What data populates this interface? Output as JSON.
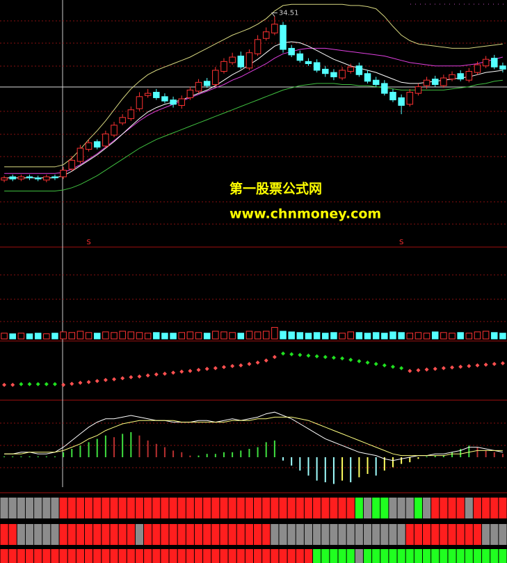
{
  "chart_data": [
    {
      "type": "candlestick",
      "open": [
        19.6,
        19.9,
        19.7,
        19.9,
        19.8,
        19.6,
        19.9,
        19.9,
        20.6,
        21.3,
        22.4,
        23.1,
        22.7,
        23.7,
        24.8,
        25.2,
        26.1,
        27.3,
        27.6,
        27.2,
        26.9,
        26.4,
        27.1,
        27.7,
        28.6,
        28.3,
        29.5,
        30.3,
        30.9,
        29.8,
        31.1,
        32.5,
        33.0,
        33.7,
        31.6,
        31.1,
        30.4,
        30.3,
        29.7,
        29.4,
        28.9,
        29.5,
        30.0,
        29.3,
        28.7,
        28.4,
        27.6,
        27.1,
        26.5,
        27.5,
        28.2,
        28.8,
        28.2,
        28.8,
        29.3,
        28.7,
        29.4,
        30.0,
        30.7,
        30.0
      ],
      "high": [
        20.0,
        20.1,
        20.1,
        20.1,
        20.0,
        20.1,
        20.1,
        20.8,
        21.8,
        22.8,
        23.3,
        23.3,
        24.1,
        24.9,
        25.6,
        26.3,
        27.6,
        27.9,
        27.9,
        27.5,
        27.2,
        27.3,
        28.1,
        28.8,
        28.9,
        29.9,
        30.7,
        31.2,
        31.3,
        31.5,
        32.8,
        33.5,
        34.51,
        34.0,
        31.9,
        31.4,
        30.7,
        30.6,
        30.0,
        29.7,
        29.9,
        30.2,
        30.3,
        29.6,
        29.0,
        28.7,
        27.9,
        27.4,
        27.9,
        28.4,
        29.0,
        29.1,
        29.2,
        29.5,
        29.6,
        29.8,
        30.4,
        30.9,
        31.0,
        30.3
      ],
      "low": [
        19.4,
        19.5,
        19.5,
        19.6,
        19.5,
        19.4,
        19.6,
        19.7,
        20.4,
        21.1,
        22.2,
        22.4,
        22.5,
        23.5,
        24.6,
        25.0,
        25.9,
        27.1,
        26.9,
        26.6,
        26.2,
        26.1,
        26.9,
        27.5,
        28.0,
        28.1,
        29.3,
        30.1,
        29.7,
        29.6,
        30.9,
        32.3,
        32.8,
        31.2,
        30.8,
        30.3,
        30.0,
        29.4,
        29.0,
        28.7,
        28.7,
        29.3,
        29.0,
        28.4,
        28.1,
        27.3,
        26.7,
        25.6,
        26.3,
        27.3,
        27.9,
        28.1,
        28.0,
        28.6,
        28.6,
        28.5,
        29.2,
        29.8,
        29.7,
        29.4
      ],
      "close": [
        19.8,
        19.7,
        19.9,
        19.8,
        19.7,
        19.9,
        19.8,
        20.5,
        21.4,
        22.5,
        23.0,
        22.6,
        23.8,
        24.6,
        25.3,
        26.0,
        27.2,
        27.5,
        27.1,
        26.8,
        26.5,
        27.0,
        27.8,
        28.5,
        28.2,
        29.6,
        30.4,
        30.8,
        29.9,
        31.2,
        32.4,
        33.1,
        33.8,
        31.5,
        31.0,
        30.5,
        30.2,
        29.6,
        29.3,
        29.0,
        29.6,
        29.9,
        29.2,
        28.6,
        28.3,
        27.5,
        26.9,
        26.4,
        27.6,
        28.1,
        28.7,
        28.3,
        28.9,
        29.2,
        28.8,
        29.5,
        30.1,
        30.6,
        29.9,
        29.7
      ],
      "up_color": "#ff3232",
      "down_color": "#54ffff",
      "ylim": [
        13.5,
        36
      ],
      "lines": [
        {
          "color": "#d8d880",
          "values": [
            20.8,
            20.8,
            20.8,
            20.8,
            20.8,
            20.8,
            20.8,
            21.0,
            21.6,
            22.4,
            23.3,
            24.1,
            25.0,
            26.0,
            27.0,
            27.9,
            28.6,
            29.2,
            29.6,
            29.9,
            30.2,
            30.5,
            30.8,
            31.2,
            31.6,
            32.0,
            32.4,
            32.8,
            33.1,
            33.4,
            33.8,
            34.3,
            35.0,
            35.5,
            35.6,
            35.6,
            35.6,
            35.6,
            35.6,
            35.6,
            35.6,
            35.5,
            35.5,
            35.4,
            35.2,
            34.5,
            33.6,
            32.8,
            32.3,
            32.0,
            31.9,
            31.8,
            31.7,
            31.6,
            31.6,
            31.6,
            31.7,
            31.8,
            31.9,
            32.0
          ]
        },
        {
          "color": "#e040e0",
          "values": [
            20.2,
            20.2,
            20.2,
            20.2,
            20.2,
            20.2,
            20.2,
            20.3,
            20.6,
            21.0,
            21.5,
            22.0,
            22.6,
            23.2,
            23.8,
            24.4,
            25.0,
            25.5,
            25.9,
            26.2,
            26.5,
            26.8,
            27.1,
            27.4,
            27.7,
            28.0,
            28.3,
            28.7,
            29.0,
            29.4,
            29.8,
            30.2,
            30.7,
            31.1,
            31.3,
            31.5,
            31.6,
            31.6,
            31.6,
            31.5,
            31.4,
            31.3,
            31.2,
            31.1,
            31.0,
            30.9,
            30.7,
            30.5,
            30.3,
            30.2,
            30.1,
            30.0,
            30.0,
            30.0,
            30.0,
            30.1,
            30.2,
            30.4,
            30.6,
            30.8
          ]
        },
        {
          "color": "#40c040",
          "values": [
            18.6,
            18.6,
            18.6,
            18.6,
            18.6,
            18.6,
            18.6,
            18.7,
            18.9,
            19.2,
            19.6,
            20.0,
            20.5,
            21.0,
            21.5,
            22.0,
            22.5,
            22.9,
            23.3,
            23.6,
            23.9,
            24.2,
            24.5,
            24.8,
            25.1,
            25.4,
            25.7,
            26.0,
            26.3,
            26.6,
            26.9,
            27.2,
            27.5,
            27.8,
            28.0,
            28.2,
            28.3,
            28.4,
            28.4,
            28.4,
            28.3,
            28.3,
            28.2,
            28.2,
            28.1,
            28.0,
            27.9,
            27.8,
            27.8,
            27.8,
            27.8,
            27.8,
            27.8,
            27.9,
            28.0,
            28.1,
            28.3,
            28.4,
            28.6,
            28.7
          ]
        },
        {
          "color": "#ffffff",
          "values": [
            19.8,
            19.8,
            19.8,
            19.8,
            19.8,
            19.8,
            19.8,
            20.0,
            20.4,
            20.9,
            21.4,
            21.9,
            22.5,
            23.1,
            23.8,
            24.5,
            25.2,
            25.8,
            26.2,
            26.5,
            26.7,
            26.9,
            27.2,
            27.5,
            27.8,
            28.2,
            28.7,
            29.2,
            29.6,
            30.1,
            30.6,
            31.2,
            31.8,
            32.1,
            32.2,
            32.1,
            31.8,
            31.4,
            31.0,
            30.6,
            30.3,
            30.0,
            29.8,
            29.6,
            29.4,
            29.1,
            28.8,
            28.5,
            28.4,
            28.4,
            28.5,
            28.6,
            28.7,
            28.8,
            28.9,
            29.0,
            29.2,
            29.4,
            29.5,
            29.6
          ]
        }
      ],
      "signals": {
        "label": "S",
        "color": "#ff3030",
        "at": [
          10,
          47
        ]
      },
      "watermark": [
        "第一股票公式网",
        "www.chnmoney.com"
      ]
    },
    {
      "type": "volume",
      "values": [
        9,
        8,
        9,
        8,
        9,
        8,
        9,
        11,
        10,
        12,
        10,
        9,
        11,
        10,
        12,
        11,
        10,
        9,
        10,
        9,
        9,
        10,
        11,
        10,
        9,
        12,
        11,
        10,
        9,
        12,
        11,
        12,
        18,
        12,
        11,
        10,
        9,
        10,
        9,
        10,
        9,
        11,
        10,
        9,
        10,
        9,
        11,
        10,
        9,
        10,
        9,
        11,
        10,
        9,
        10,
        9,
        11,
        12,
        10,
        9
      ],
      "ylim": [
        0,
        100
      ]
    },
    {
      "type": "dots",
      "series": [
        {
          "color": "#ff5050",
          "values": [
            22,
            22,
            null,
            null,
            null,
            null,
            null,
            22,
            23.5,
            25,
            26,
            27.5,
            29,
            30,
            31.5,
            33,
            34,
            35.5,
            37,
            38,
            39.5,
            41,
            42,
            43.5,
            45,
            46,
            47.5,
            49,
            50,
            52,
            54,
            57,
            62,
            null,
            null,
            null,
            null,
            null,
            null,
            null,
            null,
            null,
            null,
            null,
            null,
            null,
            null,
            null,
            42,
            43,
            44,
            45,
            46,
            47,
            48,
            49,
            50,
            51,
            52,
            53
          ]
        },
        {
          "color": "#20e020",
          "values": [
            null,
            null,
            23,
            23,
            23,
            23,
            23,
            null,
            null,
            null,
            null,
            null,
            null,
            null,
            null,
            null,
            null,
            null,
            null,
            null,
            null,
            null,
            null,
            null,
            null,
            null,
            null,
            null,
            null,
            null,
            null,
            null,
            null,
            67,
            66,
            65,
            64,
            63,
            62,
            61,
            60,
            58,
            56,
            54,
            52,
            50,
            48,
            46,
            null,
            null,
            null,
            null,
            null,
            null,
            null,
            null,
            null,
            null,
            null,
            null
          ]
        }
      ],
      "ylim": [
        0,
        80
      ]
    },
    {
      "type": "macd",
      "histogram": [
        0.05,
        0.05,
        0.05,
        0.05,
        0.05,
        0.05,
        0.05,
        0.3,
        0.5,
        0.7,
        0.9,
        1.1,
        1.3,
        1.2,
        1.4,
        1.5,
        1.3,
        1.0,
        0.8,
        0.6,
        0.4,
        0.3,
        0.1,
        0.1,
        0.2,
        0.2,
        0.3,
        0.3,
        0.4,
        0.5,
        0.6,
        0.9,
        1.0,
        -0.2,
        -0.5,
        -0.8,
        -1.1,
        -1.4,
        -1.5,
        -1.6,
        -1.4,
        -1.5,
        -1.2,
        -1.0,
        -1.1,
        -0.8,
        -0.6,
        -0.4,
        -0.3,
        -0.1,
        0.05,
        0.1,
        0.1,
        0.3,
        0.5,
        0.7,
        0.6,
        0.4,
        0.3,
        0.2
      ],
      "hist_colors": {
        "pos_rise": "#40e040",
        "pos_fall": "#b83030",
        "neg_fall": "#a0ffff",
        "neg_rise": "#ffff60"
      },
      "series": [
        {
          "color": "#ffffff",
          "values": [
            0.2,
            0.2,
            0.3,
            0.3,
            0.2,
            0.2,
            0.3,
            0.6,
            1.0,
            1.4,
            1.8,
            2.1,
            2.3,
            2.3,
            2.4,
            2.5,
            2.4,
            2.3,
            2.2,
            2.2,
            2.1,
            2.1,
            2.1,
            2.2,
            2.2,
            2.1,
            2.2,
            2.3,
            2.2,
            2.3,
            2.4,
            2.6,
            2.7,
            2.5,
            2.3,
            2.0,
            1.7,
            1.4,
            1.1,
            0.9,
            0.7,
            0.5,
            0.3,
            0.2,
            0.1,
            -0.1,
            -0.2,
            -0.1,
            0.0,
            0.1,
            0.1,
            0.2,
            0.2,
            0.3,
            0.4,
            0.6,
            0.6,
            0.5,
            0.4,
            0.3
          ]
        },
        {
          "color": "#ffff80",
          "values": [
            0.2,
            0.2,
            0.2,
            0.3,
            0.3,
            0.3,
            0.3,
            0.4,
            0.6,
            0.8,
            1.1,
            1.3,
            1.6,
            1.8,
            2.0,
            2.1,
            2.2,
            2.2,
            2.2,
            2.2,
            2.2,
            2.1,
            2.1,
            2.1,
            2.1,
            2.1,
            2.1,
            2.2,
            2.2,
            2.2,
            2.3,
            2.3,
            2.4,
            2.4,
            2.4,
            2.3,
            2.2,
            2.0,
            1.8,
            1.6,
            1.4,
            1.2,
            1.0,
            0.8,
            0.6,
            0.4,
            0.2,
            0.1,
            0.1,
            0.1,
            0.1,
            0.1,
            0.1,
            0.2,
            0.2,
            0.3,
            0.4,
            0.4,
            0.4,
            0.4
          ]
        }
      ],
      "ylim": [
        -2,
        3
      ]
    },
    {
      "type": "state_rows",
      "palette": [
        "#ff1e1e",
        "#8c8c8c",
        "#20ff20"
      ],
      "rows": [
        [
          1,
          1,
          1,
          1,
          1,
          1,
          1,
          0,
          0,
          0,
          0,
          0,
          0,
          0,
          0,
          0,
          0,
          0,
          0,
          0,
          0,
          0,
          0,
          0,
          0,
          0,
          0,
          0,
          0,
          0,
          0,
          0,
          0,
          0,
          0,
          0,
          0,
          0,
          0,
          0,
          0,
          0,
          2,
          1,
          2,
          2,
          1,
          1,
          1,
          2,
          1,
          0,
          0,
          0,
          0,
          1,
          0,
          0,
          0,
          0
        ],
        [
          0,
          0,
          1,
          1,
          1,
          1,
          1,
          0,
          0,
          0,
          0,
          0,
          0,
          0,
          0,
          0,
          1,
          0,
          0,
          0,
          0,
          0,
          0,
          0,
          0,
          0,
          0,
          0,
          0,
          0,
          0,
          0,
          1,
          1,
          1,
          1,
          1,
          1,
          1,
          1,
          1,
          1,
          1,
          1,
          1,
          1,
          1,
          1,
          0,
          0,
          0,
          0,
          0,
          0,
          0,
          0,
          0,
          1,
          1,
          1
        ],
        [
          0,
          0,
          0,
          0,
          0,
          0,
          0,
          0,
          0,
          0,
          0,
          0,
          0,
          0,
          0,
          0,
          0,
          0,
          0,
          0,
          0,
          0,
          0,
          0,
          0,
          0,
          0,
          0,
          0,
          0,
          0,
          0,
          0,
          0,
          0,
          0,
          0,
          2,
          2,
          2,
          2,
          2,
          1,
          2,
          2,
          2,
          2,
          2,
          2,
          2,
          2,
          2,
          2,
          2,
          2,
          2,
          2,
          2,
          2,
          2
        ]
      ]
    }
  ]
}
